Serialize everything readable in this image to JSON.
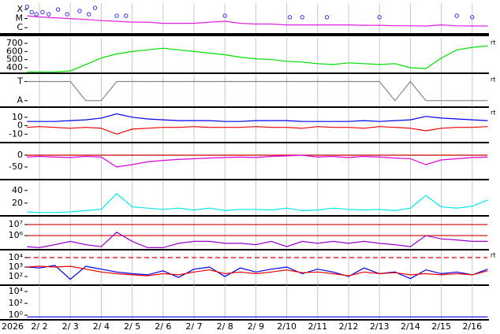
{
  "chart_data": [
    {
      "type": "line",
      "log": true,
      "xlim": [
        1.566,
        16.49
      ],
      "ylim": [
        2.5e-07,
        0.0005
      ],
      "yticks": [
        {
          "value": 0.0001,
          "label": "X"
        },
        {
          "value": 1e-05,
          "label": "M"
        },
        {
          "value": 1e-06,
          "label": "C"
        }
      ],
      "x": [
        1.6,
        2,
        2.5,
        3,
        3.5,
        4,
        4.5,
        5,
        5.5,
        6,
        6.5,
        7,
        7.5,
        8,
        8.5,
        9,
        9.5,
        10,
        10.5,
        11,
        11.5,
        12,
        12.5,
        13,
        13.5,
        14,
        14.5,
        15,
        15.5,
        16,
        16.5
      ],
      "series": [
        {
          "type": "line",
          "color": "#e020e0",
          "values": [
            2e-05,
            1.5e-05,
            1.2e-05,
            1e-05,
            8e-06,
            6e-06,
            5e-06,
            4e-06,
            4e-06,
            3e-06,
            3e-06,
            3e-06,
            4e-06,
            5e-06,
            3e-06,
            2.5e-06,
            2.5e-06,
            2e-06,
            2e-06,
            2e-06,
            2e-06,
            2e-06,
            1.8e-06,
            1.8e-06,
            1.6e-06,
            1.6e-06,
            1.5e-06,
            2e-06,
            1.6e-06,
            1.5e-06,
            1.5e-06
          ]
        },
        {
          "type": "scatter",
          "color": "#3030ff",
          "x": [
            1.6,
            1.75,
            1.9,
            2.1,
            2.3,
            2.6,
            2.9,
            3.3,
            3.6,
            3.8,
            4.5,
            4.8,
            8.0,
            10.1,
            10.5,
            11.3,
            13.0,
            15.5,
            16.0
          ],
          "values": [
            0.0002,
            5e-05,
            3e-05,
            5e-05,
            3e-05,
            0.0001,
            3e-05,
            7e-05,
            3e-05,
            0.00015,
            2e-05,
            2e-05,
            2e-05,
            1.4e-05,
            1.4e-05,
            1.4e-05,
            1.4e-05,
            2e-05,
            1.4e-05
          ]
        }
      ]
    },
    {
      "type": "line",
      "xlim": [
        1.566,
        16.49
      ],
      "ylim": [
        342,
        768
      ],
      "yticks": [
        700,
        600,
        500,
        400
      ],
      "right_label": "rt",
      "x": [
        1.6,
        2,
        2.5,
        3,
        3.5,
        4,
        4.5,
        5,
        5.5,
        6,
        6.5,
        7,
        7.5,
        8,
        8.5,
        9,
        9.5,
        10,
        10.5,
        11,
        11.5,
        12,
        12.5,
        13,
        13.5,
        14,
        14.5,
        15,
        15.5,
        16,
        16.5
      ],
      "series": [
        {
          "type": "line",
          "color": "#00dd00",
          "values": [
            350,
            350,
            350,
            360,
            440,
            520,
            570,
            600,
            620,
            640,
            620,
            600,
            580,
            560,
            530,
            510,
            500,
            480,
            470,
            450,
            440,
            460,
            450,
            440,
            450,
            400,
            390,
            520,
            620,
            650,
            670
          ]
        }
      ]
    },
    {
      "type": "line",
      "xlim": [
        1.566,
        16.49
      ],
      "ylim": [
        -0.3,
        1.35
      ],
      "yticks": [
        {
          "value": 1,
          "label": "T"
        },
        {
          "value": 0,
          "label": "A"
        }
      ],
      "right_label": "rt",
      "x": [
        1.6,
        2,
        2.5,
        3,
        3.5,
        4,
        4.5,
        5,
        5.5,
        6,
        6.5,
        7,
        7.5,
        8,
        8.5,
        9,
        9.5,
        10,
        10.5,
        11,
        11.5,
        12,
        12.5,
        13,
        13.5,
        14,
        14.5,
        15,
        15.5,
        16,
        16.5
      ],
      "series": [
        {
          "type": "line",
          "color": "#888888",
          "values": [
            1,
            1,
            1,
            1,
            0,
            0,
            1,
            1,
            1,
            1,
            1,
            1,
            1,
            1,
            1,
            1,
            1,
            1,
            1,
            1,
            1,
            1,
            1,
            1,
            0,
            1,
            0,
            0,
            0,
            0,
            0
          ]
        }
      ]
    },
    {
      "type": "line",
      "xlim": [
        1.566,
        16.49
      ],
      "ylim": [
        -19,
        21
      ],
      "yticks": [
        10,
        0,
        -10
      ],
      "right_label": "rt",
      "x": [
        1.6,
        2,
        2.5,
        3,
        3.5,
        4,
        4.5,
        5,
        5.5,
        6,
        6.5,
        7,
        7.5,
        8,
        8.5,
        9,
        9.5,
        10,
        10.5,
        11,
        11.5,
        12,
        12.5,
        13,
        13.5,
        14,
        14.5,
        15,
        15.5,
        16,
        16.5
      ],
      "series": [
        {
          "type": "line",
          "color": "#0000ee",
          "values": [
            5,
            5,
            5,
            6,
            7,
            9,
            14,
            10,
            8,
            7,
            6,
            6,
            6,
            5,
            5,
            6,
            6,
            6,
            5,
            5,
            5,
            5,
            6,
            5,
            6,
            7,
            11,
            9,
            8,
            7,
            6
          ]
        },
        {
          "type": "line",
          "color": "#ee0000",
          "values": [
            -2,
            -1,
            -2,
            -3,
            -2,
            -3,
            -10,
            -4,
            -3,
            -2,
            -2,
            -1,
            -2,
            -2,
            -2,
            -1,
            -2,
            -2,
            -3,
            -1,
            -2,
            -2,
            -3,
            -1,
            -2,
            -3,
            -6,
            -3,
            -2,
            -2,
            -1
          ]
        }
      ]
    },
    {
      "type": "line",
      "xlim": [
        1.566,
        16.49
      ],
      "ylim": [
        -100,
        50
      ],
      "yticks": [
        0,
        -50
      ],
      "hlines": [
        0
      ],
      "hline_color": "#cc0000",
      "x": [
        1.6,
        2,
        2.5,
        3,
        3.5,
        4,
        4.5,
        5,
        5.5,
        6,
        6.5,
        7,
        7.5,
        8,
        8.5,
        9,
        9.5,
        10,
        10.5,
        11,
        11.5,
        12,
        12.5,
        13,
        13.5,
        14,
        14.5,
        15,
        15.5,
        16,
        16.5
      ],
      "series": [
        {
          "type": "line",
          "color": "#dd00dd",
          "values": [
            -8,
            -5,
            -8,
            -10,
            -5,
            -8,
            -50,
            -40,
            -28,
            -22,
            -18,
            -15,
            -12,
            -10,
            -8,
            -10,
            -5,
            -3,
            0,
            -8,
            -5,
            -10,
            -5,
            -8,
            -12,
            -15,
            -40,
            -20,
            -15,
            -10,
            -8
          ]
        }
      ]
    },
    {
      "type": "line",
      "xlim": [
        1.566,
        16.49
      ],
      "ylim": [
        1,
        56
      ],
      "yticks": [
        40,
        20
      ],
      "x": [
        1.6,
        2,
        2.5,
        3,
        3.5,
        4,
        4.5,
        5,
        5.5,
        6,
        6.5,
        7,
        7.5,
        8,
        8.5,
        9,
        9.5,
        10,
        10.5,
        11,
        11.5,
        12,
        12.5,
        13,
        13.5,
        14,
        14.5,
        15,
        15.5,
        16,
        16.5
      ],
      "series": [
        {
          "type": "line",
          "color": "#00e8e8",
          "values": [
            6,
            5,
            5,
            6,
            8,
            10,
            35,
            14,
            12,
            10,
            12,
            9,
            12,
            8,
            10,
            10,
            9,
            12,
            8,
            9,
            12,
            10,
            9,
            10,
            8,
            12,
            32,
            14,
            12,
            15,
            25
          ]
        }
      ]
    },
    {
      "type": "line",
      "log": true,
      "xlim": [
        1.566,
        16.49
      ],
      "ylim": [
        62000,
        52000000
      ],
      "yticks": [
        {
          "value": 10000000,
          "label": "10⁷"
        },
        {
          "value": 1000000,
          "label": "10⁶"
        }
      ],
      "hlines": [
        10000000,
        1000000
      ],
      "hline_color": "#cc0000",
      "x": [
        1.6,
        2,
        2.5,
        3,
        3.5,
        4,
        4.5,
        5,
        5.5,
        6,
        6.5,
        7,
        7.5,
        8,
        8.5,
        9,
        9.5,
        10,
        10.5,
        11,
        11.5,
        12,
        12.5,
        13,
        13.5,
        14,
        14.5,
        15,
        15.5,
        16,
        16.5
      ],
      "series": [
        {
          "type": "line",
          "color": "#9a00cc",
          "values": [
            100000,
            80000,
            150000,
            300000,
            150000,
            100000,
            2000000,
            300000,
            80000,
            80000,
            200000,
            300000,
            300000,
            200000,
            200000,
            150000,
            300000,
            100000,
            300000,
            200000,
            300000,
            200000,
            300000,
            200000,
            150000,
            100000,
            1000000,
            500000,
            400000,
            300000,
            300000
          ]
        }
      ]
    },
    {
      "type": "line",
      "log": true,
      "xlim": [
        1.566,
        16.49
      ],
      "ylim": [
        14.7,
        56000
      ],
      "right_label": "rt",
      "yticks": [
        {
          "value": 10000,
          "label": "10⁴"
        },
        {
          "value": 1000,
          "label": "10³"
        },
        {
          "value": 100,
          "label": "10²"
        }
      ],
      "hlines": [
        10000
      ],
      "hline_color": "#dd0000",
      "hline_dash": true,
      "x": [
        1.6,
        2,
        2.5,
        3,
        3.5,
        4,
        4.5,
        5,
        5.5,
        6,
        6.5,
        7,
        7.5,
        8,
        8.5,
        9,
        9.5,
        10,
        10.5,
        11,
        11.5,
        12,
        12.5,
        13,
        13.5,
        14,
        14.5,
        15,
        15.5,
        16,
        16.5
      ],
      "series": [
        {
          "type": "line",
          "color": "#0000ee",
          "values": [
            1000,
            800,
            1500,
            50,
            1200,
            600,
            300,
            200,
            150,
            400,
            80,
            600,
            1000,
            100,
            800,
            300,
            600,
            1000,
            200,
            600,
            300,
            100,
            800,
            200,
            300,
            60,
            500,
            200,
            300,
            150,
            600
          ]
        },
        {
          "type": "line",
          "color": "#ee0000",
          "values": [
            1000,
            1200,
            1000,
            1200,
            600,
            300,
            200,
            150,
            120,
            200,
            150,
            300,
            500,
            200,
            300,
            200,
            300,
            500,
            250,
            300,
            200,
            120,
            300,
            200,
            250,
            150,
            200,
            150,
            200,
            150,
            400
          ]
        }
      ]
    },
    {
      "type": "line",
      "log": true,
      "xlim": [
        1.566,
        16.49
      ],
      "ylim": [
        0.22,
        120000
      ],
      "yticks": [
        {
          "value": 10000,
          "label": "10⁴"
        },
        {
          "value": 100,
          "label": "10²"
        },
        {
          "value": 1,
          "label": "10⁰"
        }
      ],
      "xlabel": "2026",
      "xticks": [
        {
          "value": 2,
          "label": "2/ 2"
        },
        {
          "value": 3,
          "label": "2/ 3"
        },
        {
          "value": 4,
          "label": "2/ 4"
        },
        {
          "value": 5,
          "label": "2/ 5"
        },
        {
          "value": 6,
          "label": "2/ 6"
        },
        {
          "value": 7,
          "label": "2/ 7"
        },
        {
          "value": 8,
          "label": "2/ 8"
        },
        {
          "value": 9,
          "label": "2/ 9"
        },
        {
          "value": 10,
          "label": "2/10"
        },
        {
          "value": 11,
          "label": "2/11"
        },
        {
          "value": 12,
          "label": "2/12"
        },
        {
          "value": 13,
          "label": "2/13"
        },
        {
          "value": 14,
          "label": "2/14"
        },
        {
          "value": 15,
          "label": "2/15"
        },
        {
          "value": 16,
          "label": "2/16"
        }
      ],
      "x": [
        1.6,
        2,
        2.5,
        3,
        3.5,
        4,
        4.5,
        5,
        5.5,
        6,
        6.5,
        7,
        7.5,
        8,
        8.5,
        9,
        9.5,
        10,
        10.5,
        11,
        11.5,
        12,
        12.5,
        13,
        13.5,
        14,
        14.5,
        15,
        15.5,
        16,
        16.5
      ],
      "series": [
        {
          "type": "line",
          "color": "#0000ee",
          "values": [
            0.5,
            0.5,
            0.5,
            0.5,
            0.5,
            0.5,
            0.5,
            0.5,
            0.5,
            0.5,
            0.5,
            0.5,
            0.5,
            0.5,
            0.5,
            0.5,
            0.5,
            0.5,
            0.5,
            0.5,
            0.5,
            0.5,
            0.5,
            0.5,
            0.5,
            0.5,
            0.5,
            0.5,
            0.5,
            0.5,
            0.5
          ]
        }
      ]
    }
  ]
}
